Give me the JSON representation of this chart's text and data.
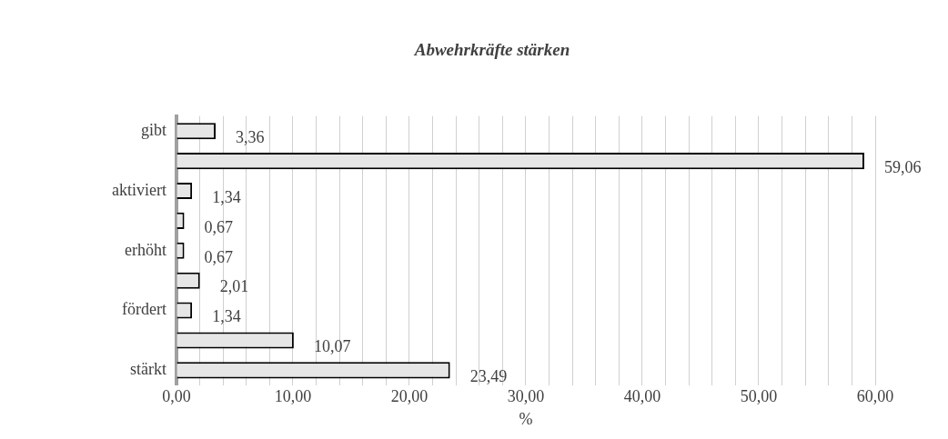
{
  "chart_data": {
    "type": "bar",
    "orientation": "horizontal",
    "title": "Abwehrkräfte stärken",
    "xlabel": "%",
    "categories": [
      "gibt",
      null,
      "aktiviert",
      null,
      "erhöht",
      null,
      "fördert",
      null,
      "stärkt"
    ],
    "values": [
      3.36,
      59.06,
      1.34,
      0.67,
      0.67,
      2.01,
      1.34,
      10.07,
      23.49
    ],
    "value_labels": [
      "3,36",
      "59,06",
      "1,34",
      "0,67",
      "0,67",
      "2,01",
      "1,34",
      "10,07",
      "23,49"
    ],
    "color": "#e6e6e6",
    "xlim": [
      0,
      60
    ],
    "xticks": [
      {
        "value": 0,
        "label": "0,00"
      },
      {
        "value": 2,
        "label": null
      },
      {
        "value": 4,
        "label": null
      },
      {
        "value": 6,
        "label": null
      },
      {
        "value": 8,
        "label": null
      },
      {
        "value": 10,
        "label": "10,00"
      },
      {
        "value": 12,
        "label": null
      },
      {
        "value": 14,
        "label": null
      },
      {
        "value": 16,
        "label": null
      },
      {
        "value": 18,
        "label": null
      },
      {
        "value": 20,
        "label": "20,00"
      },
      {
        "value": 22,
        "label": null
      },
      {
        "value": 24,
        "label": null
      },
      {
        "value": 26,
        "label": null
      },
      {
        "value": 28,
        "label": null
      },
      {
        "value": 30,
        "label": "30,00"
      },
      {
        "value": 32,
        "label": null
      },
      {
        "value": 34,
        "label": null
      },
      {
        "value": 36,
        "label": null
      },
      {
        "value": 38,
        "label": null
      },
      {
        "value": 40,
        "label": "40,00"
      },
      {
        "value": 42,
        "label": null
      },
      {
        "value": 44,
        "label": null
      },
      {
        "value": 46,
        "label": null
      },
      {
        "value": 48,
        "label": null
      },
      {
        "value": 50,
        "label": "50,00"
      },
      {
        "value": 52,
        "label": null
      },
      {
        "value": 54,
        "label": null
      },
      {
        "value": 56,
        "label": null
      },
      {
        "value": 58,
        "label": null
      },
      {
        "value": 60,
        "label": "60,00"
      }
    ],
    "grid": "x"
  }
}
